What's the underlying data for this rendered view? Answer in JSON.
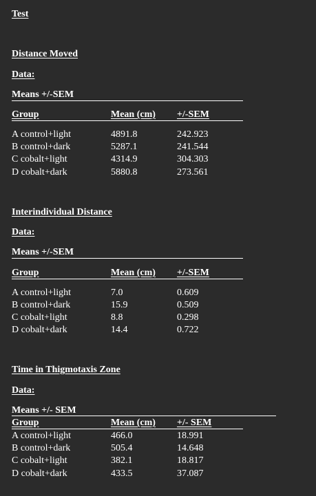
{
  "title": "Test",
  "sections": [
    {
      "heading": "Distance Moved",
      "data_label": "Data:",
      "means_label": "Means +/-SEM",
      "headers": [
        "Group",
        "Mean (cm)",
        "+/-SEM"
      ],
      "rows": [
        [
          "A control+light",
          "4891.8",
          "242.923"
        ],
        [
          "B control+dark",
          "5287.1",
          "241.544"
        ],
        [
          "C cobalt+light",
          "4314.9",
          "304.303"
        ],
        [
          "D cobalt+dark",
          "5880.8",
          "273.561"
        ]
      ]
    },
    {
      "heading": "Interindividual Distance",
      "data_label": "Data:",
      "means_label": "Means +/-SEM",
      "headers": [
        "Group",
        "Mean (cm)",
        "+/-SEM"
      ],
      "rows": [
        [
          "A control+light",
          "7.0",
          "0.609"
        ],
        [
          "B control+dark",
          "15.9",
          "0.509"
        ],
        [
          "C cobalt+light",
          "8.8",
          "0.298"
        ],
        [
          "D cobalt+dark",
          "14.4",
          "0.722"
        ]
      ]
    },
    {
      "heading": "Time in Thigmotaxis Zone",
      "data_label": "Data:",
      "means_label": "Means +/- SEM",
      "headers": [
        "Group",
        "Mean (cm)",
        "+/- SEM"
      ],
      "rows": [
        [
          "A control+light",
          "466.0",
          "18.991"
        ],
        [
          "B control+dark",
          "505.4",
          "14.648"
        ],
        [
          "C cobalt+light",
          "382.1",
          "18.817"
        ],
        [
          "D cobalt+dark",
          "433.5",
          "37.087"
        ]
      ]
    }
  ]
}
